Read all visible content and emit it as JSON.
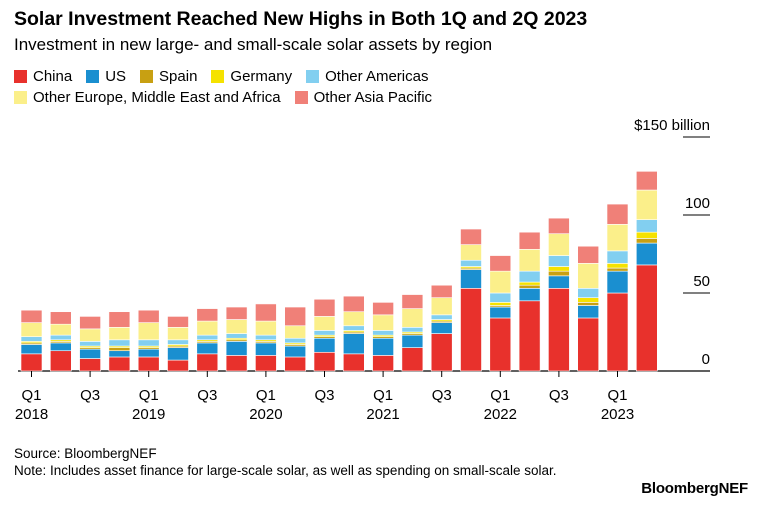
{
  "header": {
    "title": "Solar Investment Reached New Highs in Both 1Q and 2Q 2023",
    "subtitle": "Investment in new large- and small-scale solar assets by region"
  },
  "legend": [
    {
      "label": "China",
      "color": "#e8312c"
    },
    {
      "label": "US",
      "color": "#1a8fd0"
    },
    {
      "label": "Spain",
      "color": "#c8a012"
    },
    {
      "label": "Germany",
      "color": "#f5e200"
    },
    {
      "label": "Other Americas",
      "color": "#82cff0"
    },
    {
      "label": "Other Europe, Middle East and Africa",
      "color": "#fbef8a"
    },
    {
      "label": "Other Asia Pacific",
      "color": "#f08078"
    }
  ],
  "footer": {
    "source": "Source: BloombergNEF",
    "note": "Note: Includes asset finance for large-scale solar, as well as spending on small-scale solar.",
    "brand": "BloombergNEF"
  },
  "chart_data": {
    "type": "bar",
    "stacked": true,
    "ylim": [
      0,
      150
    ],
    "yticks": [
      {
        "value": 150,
        "label": "$150 billion"
      },
      {
        "value": 100,
        "label": "100"
      },
      {
        "value": 50,
        "label": "50"
      },
      {
        "value": 0,
        "label": "0"
      }
    ],
    "categories": [
      "Q1 2018",
      "Q2 2018",
      "Q3 2018",
      "Q4 2018",
      "Q1 2019",
      "Q2 2019",
      "Q3 2019",
      "Q4 2019",
      "Q1 2020",
      "Q2 2020",
      "Q3 2020",
      "Q4 2020",
      "Q1 2021",
      "Q2 2021",
      "Q3 2021",
      "Q4 2021",
      "Q1 2022",
      "Q2 2022",
      "Q3 2022",
      "Q4 2022",
      "Q1 2023",
      "Q2 2023"
    ],
    "x_tick_labels": [
      {
        "index": 0,
        "quarter": "Q1",
        "year": "2018"
      },
      {
        "index": 2,
        "quarter": "Q3",
        "year": ""
      },
      {
        "index": 4,
        "quarter": "Q1",
        "year": "2019"
      },
      {
        "index": 6,
        "quarter": "Q3",
        "year": ""
      },
      {
        "index": 8,
        "quarter": "Q1",
        "year": "2020"
      },
      {
        "index": 10,
        "quarter": "Q3",
        "year": ""
      },
      {
        "index": 12,
        "quarter": "Q1",
        "year": "2021"
      },
      {
        "index": 14,
        "quarter": "Q3",
        "year": ""
      },
      {
        "index": 16,
        "quarter": "Q1",
        "year": "2022"
      },
      {
        "index": 18,
        "quarter": "Q3",
        "year": ""
      },
      {
        "index": 20,
        "quarter": "Q1",
        "year": "2023"
      }
    ],
    "series": [
      {
        "name": "China",
        "color": "#e8312c",
        "values": [
          11,
          13,
          8,
          9,
          9,
          7,
          11,
          10,
          10,
          9,
          12,
          11,
          10,
          15,
          24,
          53,
          34,
          45,
          53,
          34,
          50,
          68
        ]
      },
      {
        "name": "US",
        "color": "#1a8fd0",
        "values": [
          6,
          5,
          6,
          4,
          5,
          8,
          7,
          9,
          8,
          7,
          9,
          13,
          11,
          8,
          7,
          12,
          7,
          8,
          8,
          8,
          14,
          14
        ]
      },
      {
        "name": "Spain",
        "color": "#c8a012",
        "values": [
          1,
          1,
          1,
          2,
          1,
          1,
          1,
          1,
          1,
          1,
          1,
          1,
          1,
          1,
          1,
          1,
          1,
          2,
          3,
          2,
          2,
          3
        ]
      },
      {
        "name": "Germany",
        "color": "#f5e200",
        "values": [
          1,
          1,
          1,
          1,
          1,
          1,
          1,
          1,
          1,
          1,
          1,
          1,
          1,
          1,
          1,
          1,
          2,
          2,
          3,
          3,
          3,
          4
        ]
      },
      {
        "name": "Other Americas",
        "color": "#82cff0",
        "values": [
          3,
          3,
          3,
          4,
          4,
          3,
          3,
          3,
          3,
          3,
          3,
          3,
          3,
          3,
          3,
          4,
          6,
          7,
          7,
          6,
          8,
          8
        ]
      },
      {
        "name": "Other Europe, Middle East and Africa",
        "color": "#fbef8a",
        "values": [
          9,
          7,
          8,
          8,
          11,
          8,
          9,
          9,
          9,
          8,
          9,
          9,
          10,
          12,
          11,
          10,
          14,
          14,
          14,
          16,
          17,
          19
        ]
      },
      {
        "name": "Other Asia Pacific",
        "color": "#f08078",
        "values": [
          8,
          8,
          8,
          10,
          8,
          7,
          8,
          8,
          11,
          12,
          11,
          10,
          8,
          9,
          8,
          10,
          10,
          11,
          10,
          11,
          13,
          12
        ]
      }
    ]
  }
}
